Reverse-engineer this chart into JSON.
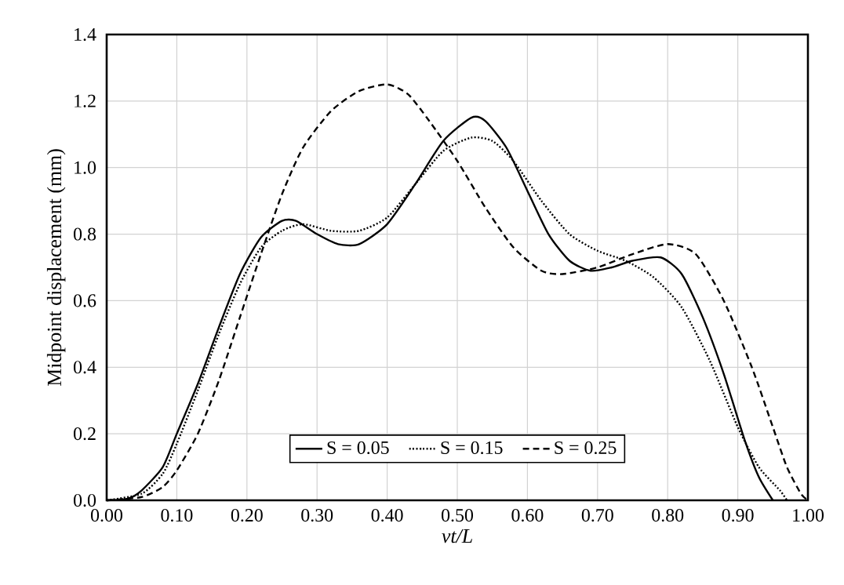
{
  "chart_data": {
    "type": "line",
    "xlabel": "vt/L",
    "ylabel": "Midpoint displacement (mm)",
    "xlim": [
      0,
      1
    ],
    "ylim": [
      0,
      1.4
    ],
    "xticks": [
      {
        "value": 0,
        "label": "0.00"
      },
      {
        "value": 0.1,
        "label": "0.10"
      },
      {
        "value": 0.2,
        "label": "0.20"
      },
      {
        "value": 0.3,
        "label": "0.30"
      },
      {
        "value": 0.4,
        "label": "0.40"
      },
      {
        "value": 0.5,
        "label": "0.50"
      },
      {
        "value": 0.6,
        "label": "0.60"
      },
      {
        "value": 0.7,
        "label": "0.70"
      },
      {
        "value": 0.8,
        "label": "0.80"
      },
      {
        "value": 0.9,
        "label": "0.90"
      },
      {
        "value": 1,
        "label": "1.00"
      }
    ],
    "yticks": [
      {
        "value": 0,
        "label": "0.0"
      },
      {
        "value": 0.2,
        "label": "0.2"
      },
      {
        "value": 0.4,
        "label": "0.4"
      },
      {
        "value": 0.6,
        "label": "0.6"
      },
      {
        "value": 0.8,
        "label": "0.8"
      },
      {
        "value": 1,
        "label": "1.0"
      },
      {
        "value": 1.2,
        "label": "1.2"
      },
      {
        "value": 1.4,
        "label": "1.4"
      }
    ],
    "grid": true,
    "legend": "bottom",
    "marker": "none",
    "series": [
      {
        "name": "S = 0.05",
        "color": "#000000",
        "line_style": "solid",
        "x": [
          0,
          0.03,
          0.05,
          0.08,
          0.1,
          0.13,
          0.16,
          0.19,
          0.22,
          0.25,
          0.27,
          0.3,
          0.33,
          0.36,
          0.4,
          0.44,
          0.48,
          0.52,
          0.54,
          0.57,
          0.6,
          0.63,
          0.66,
          0.69,
          0.72,
          0.75,
          0.79,
          0.82,
          0.85,
          0.88,
          0.91,
          0.93,
          0.95
        ],
        "values": [
          0,
          0.005,
          0.03,
          0.1,
          0.2,
          0.35,
          0.52,
          0.68,
          0.79,
          0.84,
          0.84,
          0.8,
          0.77,
          0.77,
          0.83,
          0.95,
          1.08,
          1.15,
          1.14,
          1.06,
          0.93,
          0.8,
          0.72,
          0.69,
          0.7,
          0.72,
          0.73,
          0.68,
          0.55,
          0.38,
          0.18,
          0.07,
          0
        ]
      },
      {
        "name": "S = 0.15",
        "color": "#000000",
        "line_style": "dotted",
        "x": [
          0,
          0.05,
          0.08,
          0.1,
          0.13,
          0.16,
          0.19,
          0.22,
          0.25,
          0.28,
          0.32,
          0.36,
          0.4,
          0.44,
          0.48,
          0.52,
          0.55,
          0.58,
          0.62,
          0.66,
          0.7,
          0.74,
          0.78,
          0.82,
          0.86,
          0.9,
          0.93,
          0.96,
          0.97
        ],
        "values": [
          0,
          0.02,
          0.08,
          0.17,
          0.33,
          0.5,
          0.65,
          0.76,
          0.81,
          0.83,
          0.81,
          0.81,
          0.85,
          0.95,
          1.05,
          1.09,
          1.08,
          1.02,
          0.9,
          0.8,
          0.75,
          0.72,
          0.67,
          0.58,
          0.42,
          0.22,
          0.1,
          0.03,
          0
        ]
      },
      {
        "name": "S = 0.25",
        "color": "#000000",
        "line_style": "dashed",
        "x": [
          0,
          0.05,
          0.08,
          0.1,
          0.13,
          0.16,
          0.19,
          0.22,
          0.25,
          0.28,
          0.32,
          0.36,
          0.4,
          0.43,
          0.46,
          0.5,
          0.54,
          0.58,
          0.62,
          0.65,
          0.7,
          0.75,
          0.8,
          0.84,
          0.88,
          0.92,
          0.95,
          0.97,
          0.99,
          1.0
        ],
        "values": [
          0,
          0.01,
          0.04,
          0.09,
          0.2,
          0.36,
          0.55,
          0.74,
          0.92,
          1.06,
          1.17,
          1.23,
          1.25,
          1.22,
          1.14,
          1.02,
          0.88,
          0.76,
          0.69,
          0.68,
          0.7,
          0.74,
          0.77,
          0.74,
          0.6,
          0.4,
          0.22,
          0.1,
          0.02,
          0
        ]
      }
    ]
  }
}
